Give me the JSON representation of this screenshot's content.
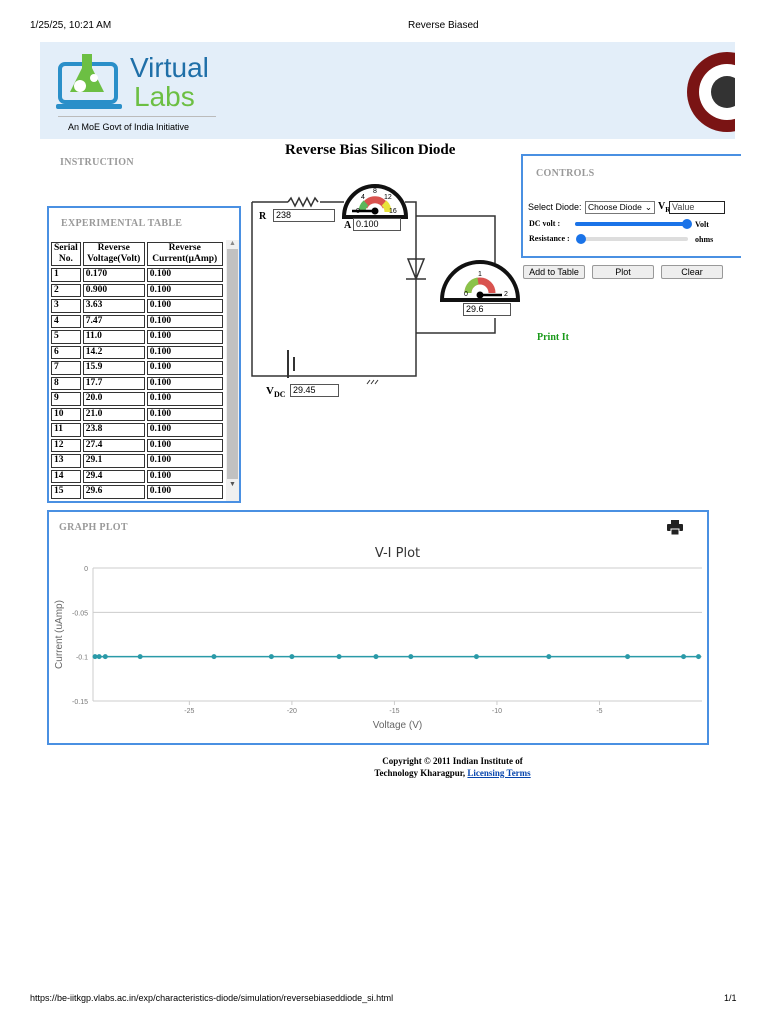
{
  "print_header": {
    "datetime": "1/25/25, 10:21 AM",
    "title": "Reverse Biased"
  },
  "print_footer": {
    "url": "https://be-iitkgp.vlabs.ac.in/exp/characteristics-diode/simulation/reversebiaseddiode_si.html",
    "page": "1/1"
  },
  "banner": {
    "logo_word1": "Virtual",
    "logo_word2": "Labs",
    "tagline": "An MoE Govt of India Initiative"
  },
  "sections": {
    "instruction": "INSTRUCTION",
    "table": "EXPERIMENTAL TABLE",
    "controls": "CONTROLS",
    "graph": "GRAPH PLOT"
  },
  "page_title": "Reverse Bias Silicon Diode",
  "circuit": {
    "r_label": "R",
    "r_value": "238",
    "a_label": "A",
    "a_value": "0.100",
    "v_value": "29.6",
    "vdc_label": "V",
    "vdc_sub": "DC",
    "vdc_value": "29.45",
    "ammeter_ticks": [
      "0",
      "4",
      "8",
      "12",
      "16"
    ],
    "voltmeter_ticks": [
      "0",
      "1",
      "2"
    ]
  },
  "controls": {
    "select_label": "Select Diode:",
    "select_value": "Choose Diode",
    "vr_label": "V",
    "vr_sub": "R",
    "vr_placeholder": "Value",
    "dc_volt_label": "DC volt :",
    "dc_volt_unit": "Volt",
    "dc_volt_level": 1.0,
    "resistance_label": "Resistance :",
    "resistance_unit": "ohms",
    "resistance_level": 0.03,
    "buttons": {
      "add": "Add to Table",
      "plot": "Plot",
      "clear": "Clear"
    },
    "print_it": "Print It"
  },
  "table": {
    "headers": [
      "Serial No.",
      "Reverse Voltage(Volt)",
      "Reverse Current(µAmp)"
    ],
    "rows": [
      [
        "1",
        "0.170",
        "0.100"
      ],
      [
        "2",
        "0.900",
        "0.100"
      ],
      [
        "3",
        "3.63",
        "0.100"
      ],
      [
        "4",
        "7.47",
        "0.100"
      ],
      [
        "5",
        "11.0",
        "0.100"
      ],
      [
        "6",
        "14.2",
        "0.100"
      ],
      [
        "7",
        "15.9",
        "0.100"
      ],
      [
        "8",
        "17.7",
        "0.100"
      ],
      [
        "9",
        "20.0",
        "0.100"
      ],
      [
        "10",
        "21.0",
        "0.100"
      ],
      [
        "11",
        "23.8",
        "0.100"
      ],
      [
        "12",
        "27.4",
        "0.100"
      ],
      [
        "13",
        "29.1",
        "0.100"
      ],
      [
        "14",
        "29.4",
        "0.100"
      ],
      [
        "15",
        "29.6",
        "0.100"
      ]
    ]
  },
  "chart_data": {
    "type": "line",
    "title": "V-I Plot",
    "xlabel": "Voltage (V)",
    "ylabel": "Current (uAmp)",
    "x": [
      -0.17,
      -0.9,
      -3.63,
      -7.47,
      -11.0,
      -14.2,
      -15.9,
      -17.7,
      -20.0,
      -21.0,
      -23.8,
      -27.4,
      -29.1,
      -29.4,
      -29.6
    ],
    "y": [
      -0.1,
      -0.1,
      -0.1,
      -0.1,
      -0.1,
      -0.1,
      -0.1,
      -0.1,
      -0.1,
      -0.1,
      -0.1,
      -0.1,
      -0.1,
      -0.1,
      -0.1
    ],
    "xlim": [
      -29.7,
      0
    ],
    "ylim": [
      -0.15,
      0
    ],
    "xticks": [
      "-25",
      "-20",
      "-15",
      "-10",
      "-5"
    ],
    "yticks": [
      "0",
      "-0.05",
      "-0.1",
      "-0.15"
    ],
    "grid": true,
    "color": "#2a9aa8"
  },
  "copyright": {
    "text": "Copyright © 2011 Indian Institute of Technology Kharagpur, ",
    "link": "Licensing Terms"
  }
}
